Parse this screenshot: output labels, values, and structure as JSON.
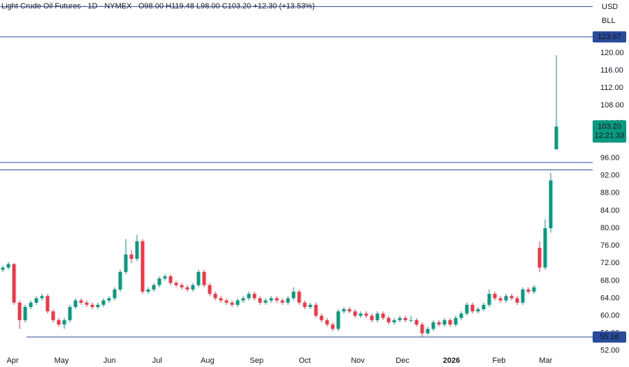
{
  "chart_data": {
    "type": "candlestick",
    "title": "Light Crude Oil Futures · 1D · NYMEX",
    "ohlc_text": "O98.00  H119.48  L98.00  C103.20  +12.30 (+13.53%)",
    "currency": "USD",
    "unit": "BLL",
    "up_color": "#089981",
    "down_color": "#f23645",
    "ohlc": [
      [
        70,
        71,
        69.5,
        70.5
      ],
      [
        70.5,
        71.5,
        70,
        71
      ],
      [
        71,
        72.3,
        70.5,
        71.8
      ],
      [
        71.8,
        72,
        62.5,
        63
      ],
      [
        63,
        63.5,
        57,
        59
      ],
      [
        59,
        62.5,
        58.5,
        62
      ],
      [
        62,
        63.5,
        61.5,
        63
      ],
      [
        63,
        64.5,
        62.5,
        64
      ],
      [
        64,
        65,
        63.5,
        64.5
      ],
      [
        64.5,
        65,
        60.5,
        61
      ],
      [
        61,
        61.5,
        58.5,
        59
      ],
      [
        59,
        59.5,
        57.5,
        58
      ],
      [
        58,
        59.5,
        57,
        59
      ],
      [
        59,
        62.5,
        58.5,
        62
      ],
      [
        62,
        64,
        61.5,
        63.5
      ],
      [
        63.5,
        64,
        62.5,
        63
      ],
      [
        63,
        63.5,
        62,
        62.5
      ],
      [
        62.5,
        63,
        61.5,
        62
      ],
      [
        62,
        63,
        61.5,
        62.5
      ],
      [
        62.5,
        64,
        62,
        63.5
      ],
      [
        63.5,
        64.5,
        63,
        64
      ],
      [
        64,
        66.5,
        63.5,
        66
      ],
      [
        66,
        70.5,
        65.5,
        70
      ],
      [
        70,
        77.5,
        69.5,
        74
      ],
      [
        74,
        75,
        72,
        73
      ],
      [
        73,
        78.5,
        72.5,
        77
      ],
      [
        77,
        77.5,
        65,
        65.5
      ],
      [
        65.5,
        66.5,
        65,
        66
      ],
      [
        66,
        67.5,
        65.5,
        67
      ],
      [
        67,
        69,
        66.5,
        68.5
      ],
      [
        68.5,
        69.5,
        68,
        69
      ],
      [
        69,
        69.5,
        67,
        67.5
      ],
      [
        67.5,
        68,
        66.5,
        67
      ],
      [
        67,
        67.5,
        66,
        66.5
      ],
      [
        66.5,
        67,
        65.5,
        66
      ],
      [
        66,
        67.5,
        65.5,
        67
      ],
      [
        67,
        70.5,
        66.5,
        70
      ],
      [
        70,
        70.5,
        66.5,
        67
      ],
      [
        67,
        67.5,
        64.5,
        65
      ],
      [
        65,
        65.5,
        63.5,
        64
      ],
      [
        64,
        64.5,
        63,
        63.5
      ],
      [
        63.5,
        64,
        62.5,
        63
      ],
      [
        63,
        63.5,
        62,
        62.5
      ],
      [
        62.5,
        64,
        62,
        63.5
      ],
      [
        63.5,
        64.5,
        63,
        64
      ],
      [
        64,
        65.5,
        63.5,
        65
      ],
      [
        65,
        65.5,
        63.5,
        64
      ],
      [
        64,
        64.5,
        62.5,
        63
      ],
      [
        63,
        64,
        62.5,
        63.5
      ],
      [
        63.5,
        64.5,
        63,
        64
      ],
      [
        64,
        64.5,
        63,
        63.5
      ],
      [
        63.5,
        64,
        62.5,
        63
      ],
      [
        63,
        64.5,
        62.5,
        64
      ],
      [
        64,
        66.5,
        63.5,
        65.5
      ],
      [
        65.5,
        66,
        62.5,
        63
      ],
      [
        63,
        63.5,
        61.5,
        62
      ],
      [
        62,
        63,
        61.5,
        62.5
      ],
      [
        62.5,
        63,
        59.5,
        60
      ],
      [
        60,
        60.5,
        58.5,
        59
      ],
      [
        59,
        59.5,
        57.5,
        58
      ],
      [
        58,
        58.5,
        56.5,
        57
      ],
      [
        57,
        61.5,
        56.5,
        61
      ],
      [
        61,
        62,
        60.5,
        61.5
      ],
      [
        61.5,
        62,
        60.5,
        61
      ],
      [
        61,
        61.5,
        59.5,
        60
      ],
      [
        60,
        61,
        59.5,
        60.5
      ],
      [
        60.5,
        61,
        59.5,
        60
      ],
      [
        60,
        60.5,
        58.5,
        59
      ],
      [
        59,
        61,
        58.5,
        60.5
      ],
      [
        60.5,
        61,
        59,
        59.5
      ],
      [
        59.5,
        60,
        58,
        58.5
      ],
      [
        58.5,
        59.5,
        58,
        59
      ],
      [
        59,
        60,
        58.5,
        59.5
      ],
      [
        59.5,
        60,
        58.5,
        59
      ],
      [
        59,
        60,
        58.5,
        59
      ],
      [
        59,
        59.5,
        57.5,
        58
      ],
      [
        58,
        58.5,
        55.2,
        56
      ],
      [
        56,
        57.5,
        55.5,
        57
      ],
      [
        57,
        59,
        56.5,
        58.5
      ],
      [
        58.5,
        59,
        57.5,
        58
      ],
      [
        58,
        59.5,
        57.5,
        59
      ],
      [
        59,
        59.5,
        57.5,
        58
      ],
      [
        58,
        60,
        57.5,
        59.5
      ],
      [
        59.5,
        61,
        59,
        60.5
      ],
      [
        60.5,
        63,
        60,
        62.5
      ],
      [
        62.5,
        63,
        60.5,
        61
      ],
      [
        61,
        62,
        60.5,
        61.5
      ],
      [
        61.5,
        63,
        61,
        62.5
      ],
      [
        62.5,
        66,
        62,
        65
      ],
      [
        65,
        65.5,
        63.5,
        64
      ],
      [
        64,
        64.5,
        63,
        63.5
      ],
      [
        63.5,
        65,
        63,
        64.5
      ],
      [
        64.5,
        65,
        63.5,
        64
      ],
      [
        64,
        64.5,
        62.5,
        63
      ],
      [
        63,
        66.5,
        62.5,
        66
      ],
      [
        66,
        66.5,
        65,
        65.5
      ],
      [
        65.5,
        67,
        65,
        66.5
      ],
      [
        75.5,
        77,
        70,
        71
      ],
      [
        71,
        82,
        70.5,
        80
      ],
      [
        80,
        92.6,
        79,
        90.9
      ],
      [
        98,
        119.48,
        98,
        103.2
      ]
    ],
    "xlim": [
      0.5,
      105.5
    ],
    "xticks": [
      {
        "value": 2.75,
        "label": "Apr"
      },
      {
        "value": 11.5,
        "label": "May"
      },
      {
        "value": 20.1,
        "label": "Jun"
      },
      {
        "value": 28.6,
        "label": "Jul"
      },
      {
        "value": 37.6,
        "label": "Aug"
      },
      {
        "value": 46.4,
        "label": "Sep"
      },
      {
        "value": 55,
        "label": "Oct"
      },
      {
        "value": 64.5,
        "label": "Nov"
      },
      {
        "value": 72.5,
        "label": "Dec"
      },
      {
        "value": 81.25,
        "label": "2026"
      },
      {
        "value": 89.75,
        "label": "Feb"
      },
      {
        "value": 98.1,
        "label": "Mar"
      }
    ],
    "ylim": [
      48.3,
      132.1
    ],
    "yticks": [
      {
        "value": 52,
        "label": "52.00"
      },
      {
        "value": 56,
        "label": "56.00"
      },
      {
        "value": 60,
        "label": "60.00"
      },
      {
        "value": 64,
        "label": "64.00"
      },
      {
        "value": 68,
        "label": "68.00"
      },
      {
        "value": 72,
        "label": "72.00"
      },
      {
        "value": 76,
        "label": "76.00"
      },
      {
        "value": 80,
        "label": "80.00"
      },
      {
        "value": 84,
        "label": "84.00"
      },
      {
        "value": 88,
        "label": "88.00"
      },
      {
        "value": 92,
        "label": "92.00"
      },
      {
        "value": 96,
        "label": "96.00"
      },
      {
        "value": 100,
        "label": "100.00"
      },
      {
        "value": 104,
        "label": "104.00"
      },
      {
        "value": 108,
        "label": "108.00"
      },
      {
        "value": 112,
        "label": "112.00"
      },
      {
        "value": 116,
        "label": "116.00"
      },
      {
        "value": 120,
        "label": "120.00"
      }
    ],
    "levels": [
      {
        "price": 130.6
      },
      {
        "price": 123.67,
        "tagged": true
      },
      {
        "price": 95
      },
      {
        "price": 93.3
      },
      {
        "price": 55.16,
        "tagged": true,
        "start": 5.25
      }
    ],
    "last_price": {
      "value": 103.2,
      "label": "103.20"
    },
    "countdown": "12:21:33"
  }
}
